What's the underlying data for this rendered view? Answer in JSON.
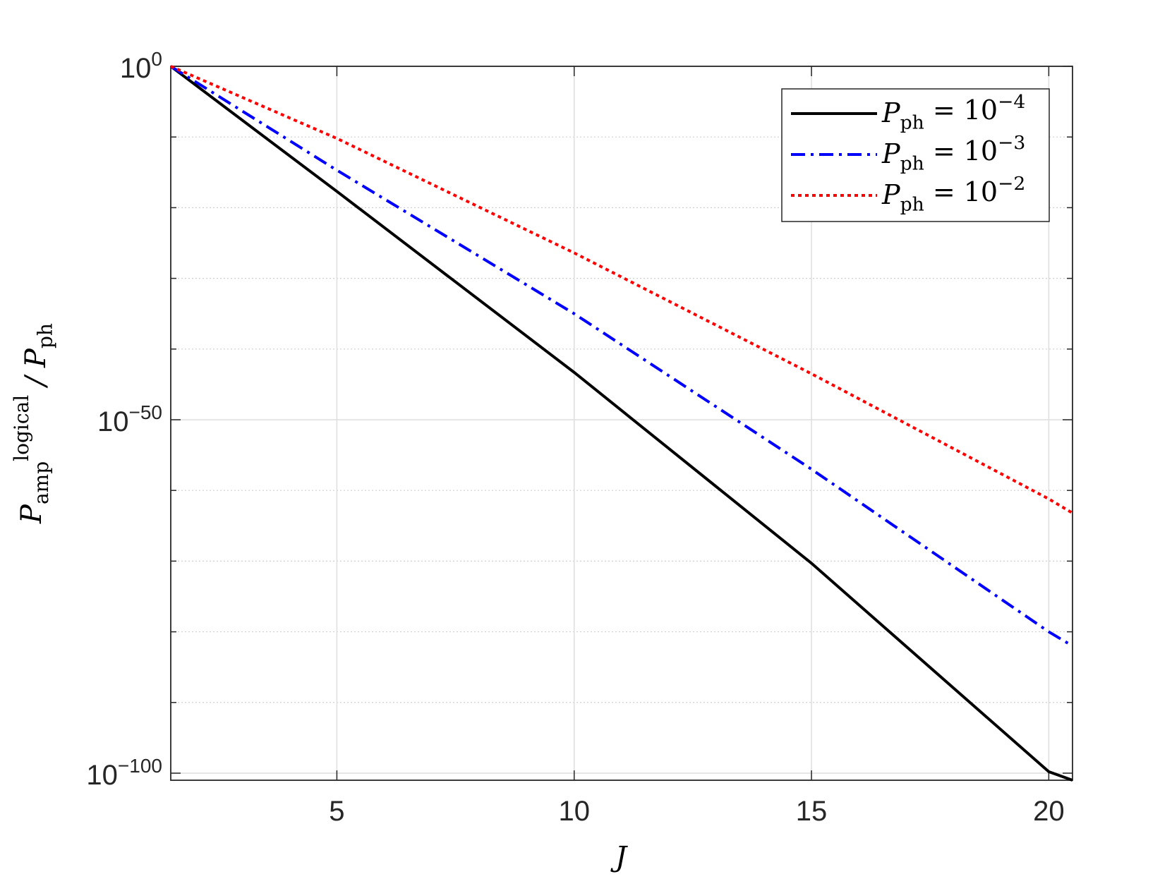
{
  "chart_data": {
    "type": "line",
    "x_label": "J",
    "y_label": "P_{amp}^{logical} / P_{ph}",
    "x": [
      1.5,
      5,
      10,
      15,
      20,
      20.5
    ],
    "series": [
      {
        "name": "P_{ph} = 10^{-4}",
        "color": "#000000",
        "style": "solid",
        "values": [
          1,
          2e-18,
          5e-44,
          5e-71,
          1.6e-100,
          1e-101
        ]
      },
      {
        "name": "P_{ph} = 10^{-3}",
        "color": "#0000ff",
        "style": "dashdot",
        "values": [
          1,
          2e-15,
          1e-35,
          1e-57,
          1e-80,
          1e-82
        ]
      },
      {
        "name": "P_{ph} = 10^{-2}",
        "color": "#ff0000",
        "style": "dotted",
        "values": [
          1,
          6.3e-11,
          4e-27,
          3.2e-44,
          6.3e-62,
          6.3e-64
        ]
      }
    ],
    "xlim": [
      1.5,
      20.5
    ],
    "xticks": [
      5,
      10,
      15,
      20
    ],
    "ylim": [
      1e-101,
      1
    ],
    "y_log": true,
    "yticks": [
      {
        "value": 1,
        "label": "10^{0}"
      },
      {
        "value": 1e-50,
        "label": "10^{-50}"
      },
      {
        "value": 1e-100,
        "label": "10^{-100}"
      }
    ],
    "yminorticks": [
      1e-10,
      1e-20,
      1e-30,
      1e-40,
      1e-60,
      1e-70,
      1e-80,
      1e-90
    ],
    "grid": true,
    "legend": "upper right"
  }
}
